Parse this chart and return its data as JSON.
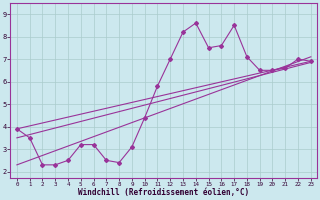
{
  "xlabel": "Windchill (Refroidissement éolien,°C)",
  "background_color": "#cce8ee",
  "grid_color": "#aacccc",
  "line_color": "#993399",
  "x_ticks": [
    0,
    1,
    2,
    3,
    4,
    5,
    6,
    7,
    8,
    9,
    10,
    11,
    12,
    13,
    14,
    15,
    16,
    17,
    18,
    19,
    20,
    21,
    22,
    23
  ],
  "y_ticks": [
    2,
    3,
    4,
    5,
    6,
    7,
    8,
    9
  ],
  "xlim": [
    -0.5,
    23.5
  ],
  "ylim": [
    1.7,
    9.5
  ],
  "series1_x": [
    0,
    1,
    2,
    3,
    4,
    5,
    6,
    7,
    8,
    9,
    10,
    11,
    12,
    13,
    14,
    15,
    16,
    17,
    18,
    19,
    20,
    21,
    22,
    23
  ],
  "series1_y": [
    3.9,
    3.5,
    2.3,
    2.3,
    2.5,
    3.2,
    3.2,
    2.5,
    2.4,
    3.1,
    4.4,
    5.8,
    7.0,
    8.2,
    8.6,
    7.5,
    7.6,
    8.5,
    7.1,
    6.5,
    6.5,
    6.6,
    7.0,
    6.9
  ],
  "line2_x": [
    0,
    23
  ],
  "line2_y": [
    3.9,
    6.9
  ],
  "line3_x": [
    0,
    23
  ],
  "line3_y": [
    2.3,
    7.1
  ],
  "line4_x": [
    0,
    23
  ],
  "line4_y": [
    3.5,
    6.85
  ]
}
